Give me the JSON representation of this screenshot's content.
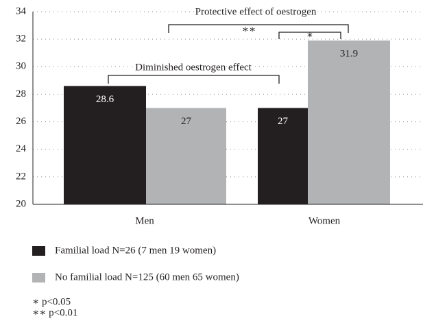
{
  "chart_data": {
    "type": "bar",
    "categories": [
      "Men",
      "Women"
    ],
    "series": [
      {
        "name": "Familial load N=26 (7 men 19 women)",
        "color": "#231f20",
        "values": [
          28.6,
          27
        ]
      },
      {
        "name": "No familial load N=125 (60 men 65 women)",
        "color": "#b2b3b5",
        "values": [
          27,
          31.9
        ]
      }
    ],
    "ylim": [
      20,
      34
    ],
    "yticks": [
      20,
      22,
      24,
      26,
      28,
      30,
      32,
      34
    ],
    "grid": true,
    "annotations": [
      "Protective effect of oestrogen",
      "Diminished oestrogen effect",
      "∗∗",
      "∗"
    ],
    "notes": [
      "∗ p<0.05",
      "∗∗ p<0.01"
    ]
  }
}
